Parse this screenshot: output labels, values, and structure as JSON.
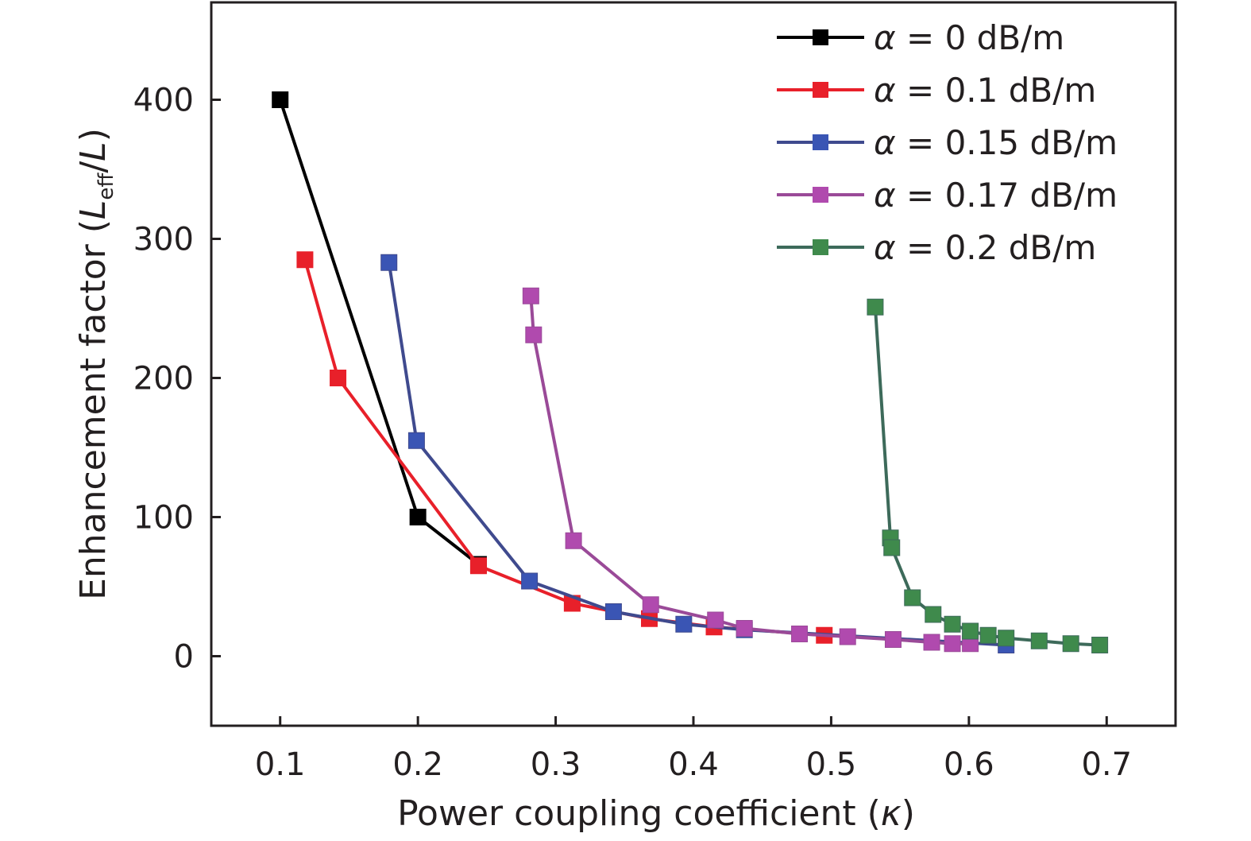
{
  "chart_data": {
    "type": "line",
    "xlabel": "Power coupling coefficient  (κ)",
    "xlabel_parts": {
      "text": "Power coupling coefficient  (",
      "symbol": "κ",
      "close": ")"
    },
    "ylabel": "Enhancement factor (Leff/L)",
    "ylabel_parts": {
      "text": "Enhancement factor (",
      "L": "L",
      "sub": "eff",
      "slash": "/",
      "L2": "L",
      "close": ")"
    },
    "xlim": [
      0.05,
      0.75
    ],
    "ylim": [
      -50,
      470
    ],
    "xticks": [
      "0.1",
      "0.2",
      "0.3",
      "0.4",
      "0.5",
      "0.6",
      "0.7"
    ],
    "yticks": [
      "0",
      "100",
      "200",
      "300",
      "400"
    ],
    "grid": false,
    "legend_position": "top-right",
    "marker": "square",
    "series": [
      {
        "name": "α = 0 dB/m",
        "symbol": "α",
        "label": " = 0 dB/m",
        "color": "#000000",
        "line_color": "#000000",
        "x": [
          0.1,
          0.2,
          0.244
        ],
        "y": [
          400,
          100,
          66
        ]
      },
      {
        "name": "α = 0.1 dB/m",
        "symbol": "α",
        "label": " = 0.1 dB/m",
        "color": "#e8202a",
        "line_color": "#e8202a",
        "x": [
          0.118,
          0.142,
          0.244,
          0.312,
          0.368,
          0.415,
          0.495
        ],
        "y": [
          285,
          200,
          65,
          38,
          27,
          21,
          15
        ]
      },
      {
        "name": "α = 0.15 dB/m",
        "symbol": "α",
        "label": " = 0.15 dB/m",
        "color": "#3a55b4",
        "line_color": "#3f4a8e",
        "x": [
          0.179,
          0.199,
          0.281,
          0.342,
          0.393,
          0.437,
          0.627
        ],
        "y": [
          283,
          155,
          54,
          32,
          23,
          19,
          8
        ]
      },
      {
        "name": "α = 0.17 dB/m",
        "symbol": "α",
        "label": " = 0.17 dB/m",
        "color": "#b04aae",
        "line_color": "#9a4a98",
        "x": [
          0.282,
          0.284,
          0.313,
          0.369,
          0.416,
          0.437,
          0.477,
          0.512,
          0.545,
          0.573,
          0.588,
          0.601
        ],
        "y": [
          259,
          231,
          83,
          37,
          26,
          20,
          16,
          14,
          12,
          10,
          9,
          9
        ]
      },
      {
        "name": "α = 0.2 dB/m",
        "symbol": "α",
        "label": " = 0.2 dB/m",
        "color": "#3f8a4c",
        "line_color": "#3d6a5a",
        "x": [
          0.532,
          0.543,
          0.544,
          0.559,
          0.574,
          0.588,
          0.601,
          0.614,
          0.627,
          0.651,
          0.674,
          0.695
        ],
        "y": [
          251,
          85,
          78,
          42,
          30,
          23,
          18,
          15,
          13,
          11,
          9,
          8
        ]
      }
    ]
  }
}
